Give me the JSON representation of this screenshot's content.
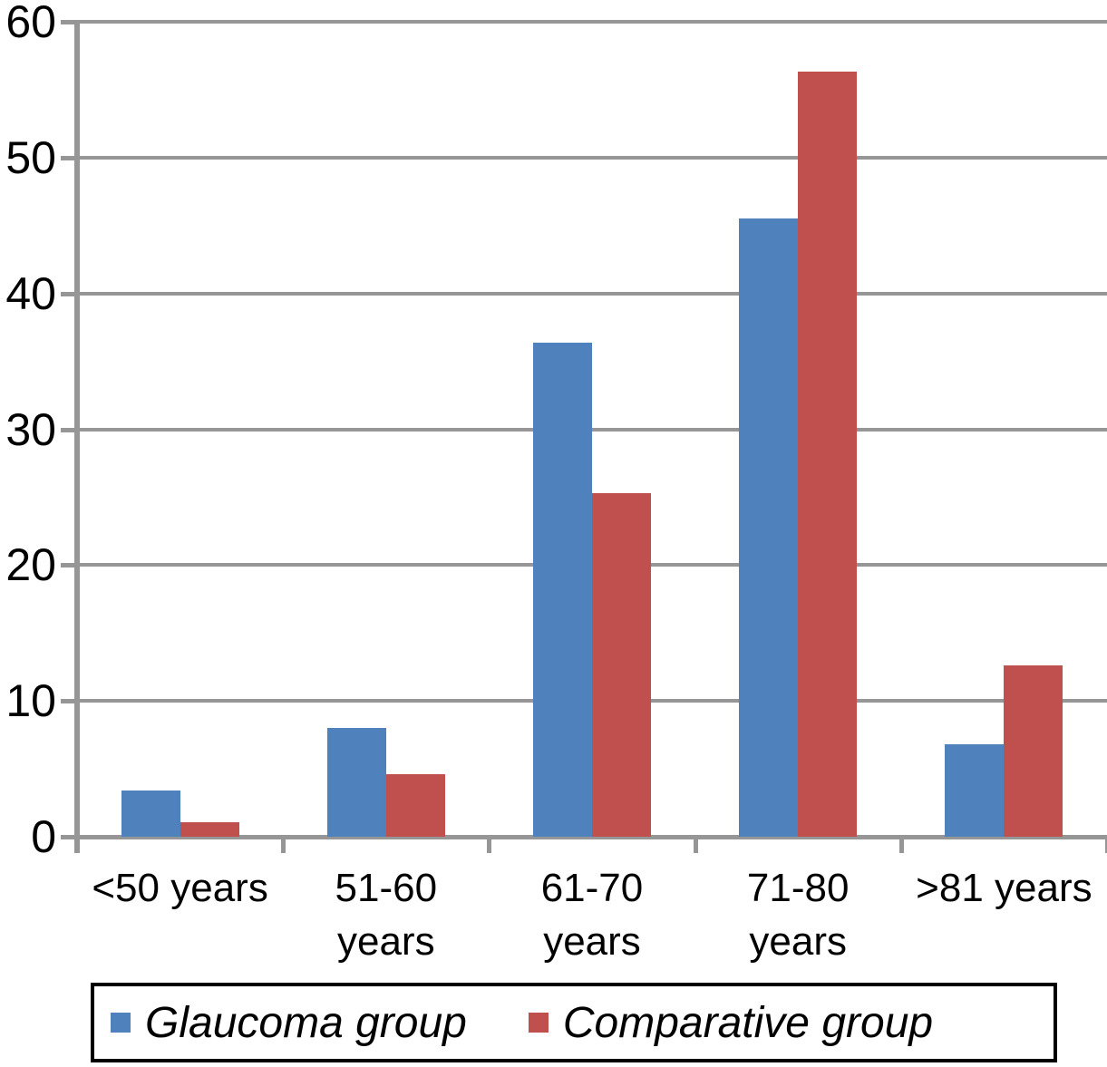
{
  "chart_data": {
    "type": "bar",
    "title": "",
    "xlabel": "",
    "ylabel": "",
    "categories": [
      "<50 years",
      "51-60\nyears",
      "61-70\nyears",
      "71-80\nyears",
      ">81 years"
    ],
    "series": [
      {
        "name": "Glaucoma group",
        "color": "#4F81BD",
        "values": [
          3.4,
          8.0,
          36.4,
          45.5,
          6.8
        ]
      },
      {
        "name": "Comparative group",
        "color": "#C0504D",
        "values": [
          1.1,
          4.6,
          25.3,
          56.3,
          12.6
        ]
      }
    ],
    "ylim": [
      0,
      60
    ],
    "yticks": [
      0,
      10,
      20,
      30,
      40,
      50,
      60
    ],
    "y_tick_labels": [
      "0",
      "10",
      "20",
      "30",
      "40",
      "50",
      "60"
    ],
    "grid": true,
    "legend_position": "bottom"
  },
  "colors": {
    "series_blue": "#4F81BD",
    "series_red": "#C0504D",
    "gridline": "#969696",
    "axis": "#969696",
    "text": "#000000",
    "legend_border": "#000000",
    "background": "#FFFFFF"
  }
}
